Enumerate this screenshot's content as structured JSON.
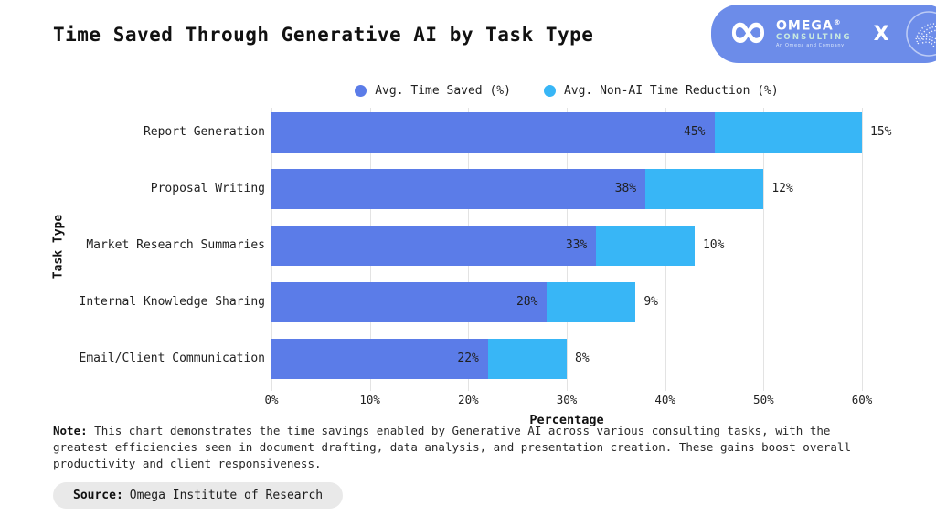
{
  "title": "Time Saved Through Generative AI by Task Type",
  "logo": {
    "brand": "OMEGA",
    "registered": "®",
    "division": "CONSULTING",
    "tagline": "An Omega and Company",
    "collab_x": "X"
  },
  "chart_data": {
    "type": "bar",
    "orientation": "horizontal",
    "stacked": true,
    "title": "Time Saved Through Generative AI by Task Type",
    "xlabel": "Percentage",
    "ylabel": "Task Type",
    "xlim": [
      0,
      60
    ],
    "xticks": [
      "0%",
      "10%",
      "20%",
      "30%",
      "40%",
      "50%",
      "60%"
    ],
    "grid": true,
    "legend_position": "top",
    "categories": [
      "Report Generation",
      "Proposal Writing",
      "Market Research Summaries",
      "Internal Knowledge Sharing",
      "Email/Client Communication"
    ],
    "series": [
      {
        "name": "Avg. Time Saved (%)",
        "color": "#5b7ce8",
        "values": [
          45,
          38,
          33,
          28,
          22
        ]
      },
      {
        "name": "Avg. Non-AI Time Reduction (%)",
        "color": "#38b6f6",
        "values": [
          15,
          12,
          10,
          9,
          8
        ]
      }
    ]
  },
  "note": {
    "prefix": "Note:",
    "text": "This chart demonstrates the time savings enabled by Generative AI across various consulting tasks, with the greatest efficiencies seen in document drafting, data analysis, and presentation creation. These gains boost overall productivity and client responsiveness."
  },
  "source": {
    "prefix": "Source:",
    "text": "Omega Institute of Research"
  },
  "colors": {
    "series1": "#5b7ce8",
    "series2": "#38b6f6",
    "badge": "#6c8ce9",
    "gridline": "#e3e3e3",
    "pill_bg": "#e9e9e9"
  }
}
